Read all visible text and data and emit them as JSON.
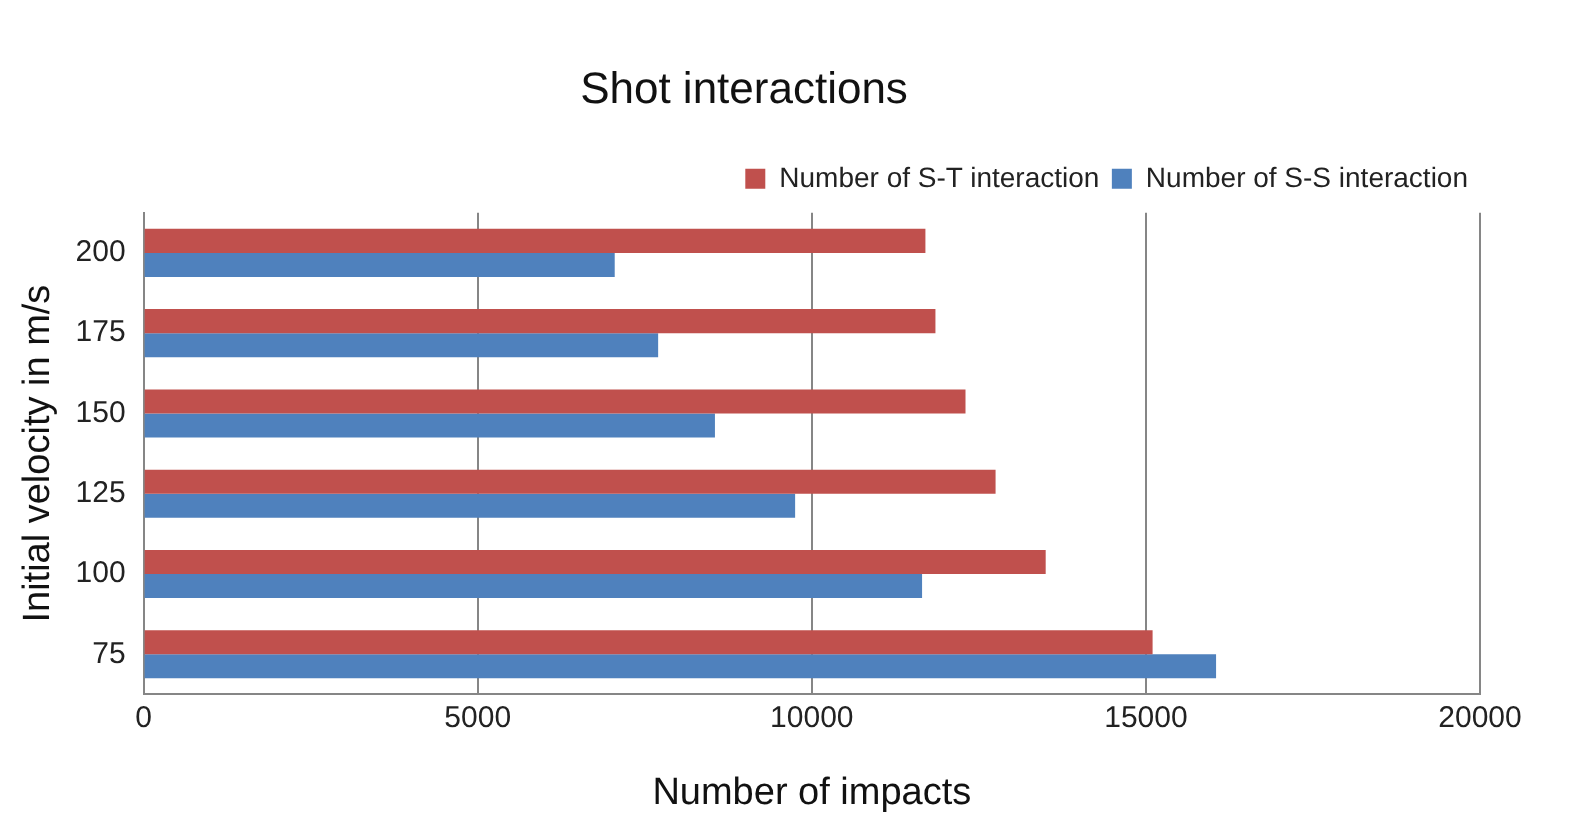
{
  "chart_data": {
    "type": "bar",
    "orientation": "horizontal",
    "title": "Shot interactions",
    "xlabel": "Number of impacts",
    "ylabel": "Initial velocity in m/s",
    "categories": [
      "200",
      "175",
      "150",
      "125",
      "100",
      "75"
    ],
    "series": [
      {
        "name": "Number of S-T interaction",
        "color": "#c0504d",
        "values": [
          11700,
          11850,
          12300,
          12750,
          13500,
          15100
        ]
      },
      {
        "name": "Number of S-S interaction",
        "color": "#4f81bd",
        "values": [
          7050,
          7700,
          8550,
          9750,
          11650,
          16050
        ]
      }
    ],
    "xlim": [
      0,
      20000
    ],
    "xticks": [
      0,
      5000,
      10000,
      15000,
      20000
    ],
    "grid": "x",
    "legend": "top right"
  }
}
